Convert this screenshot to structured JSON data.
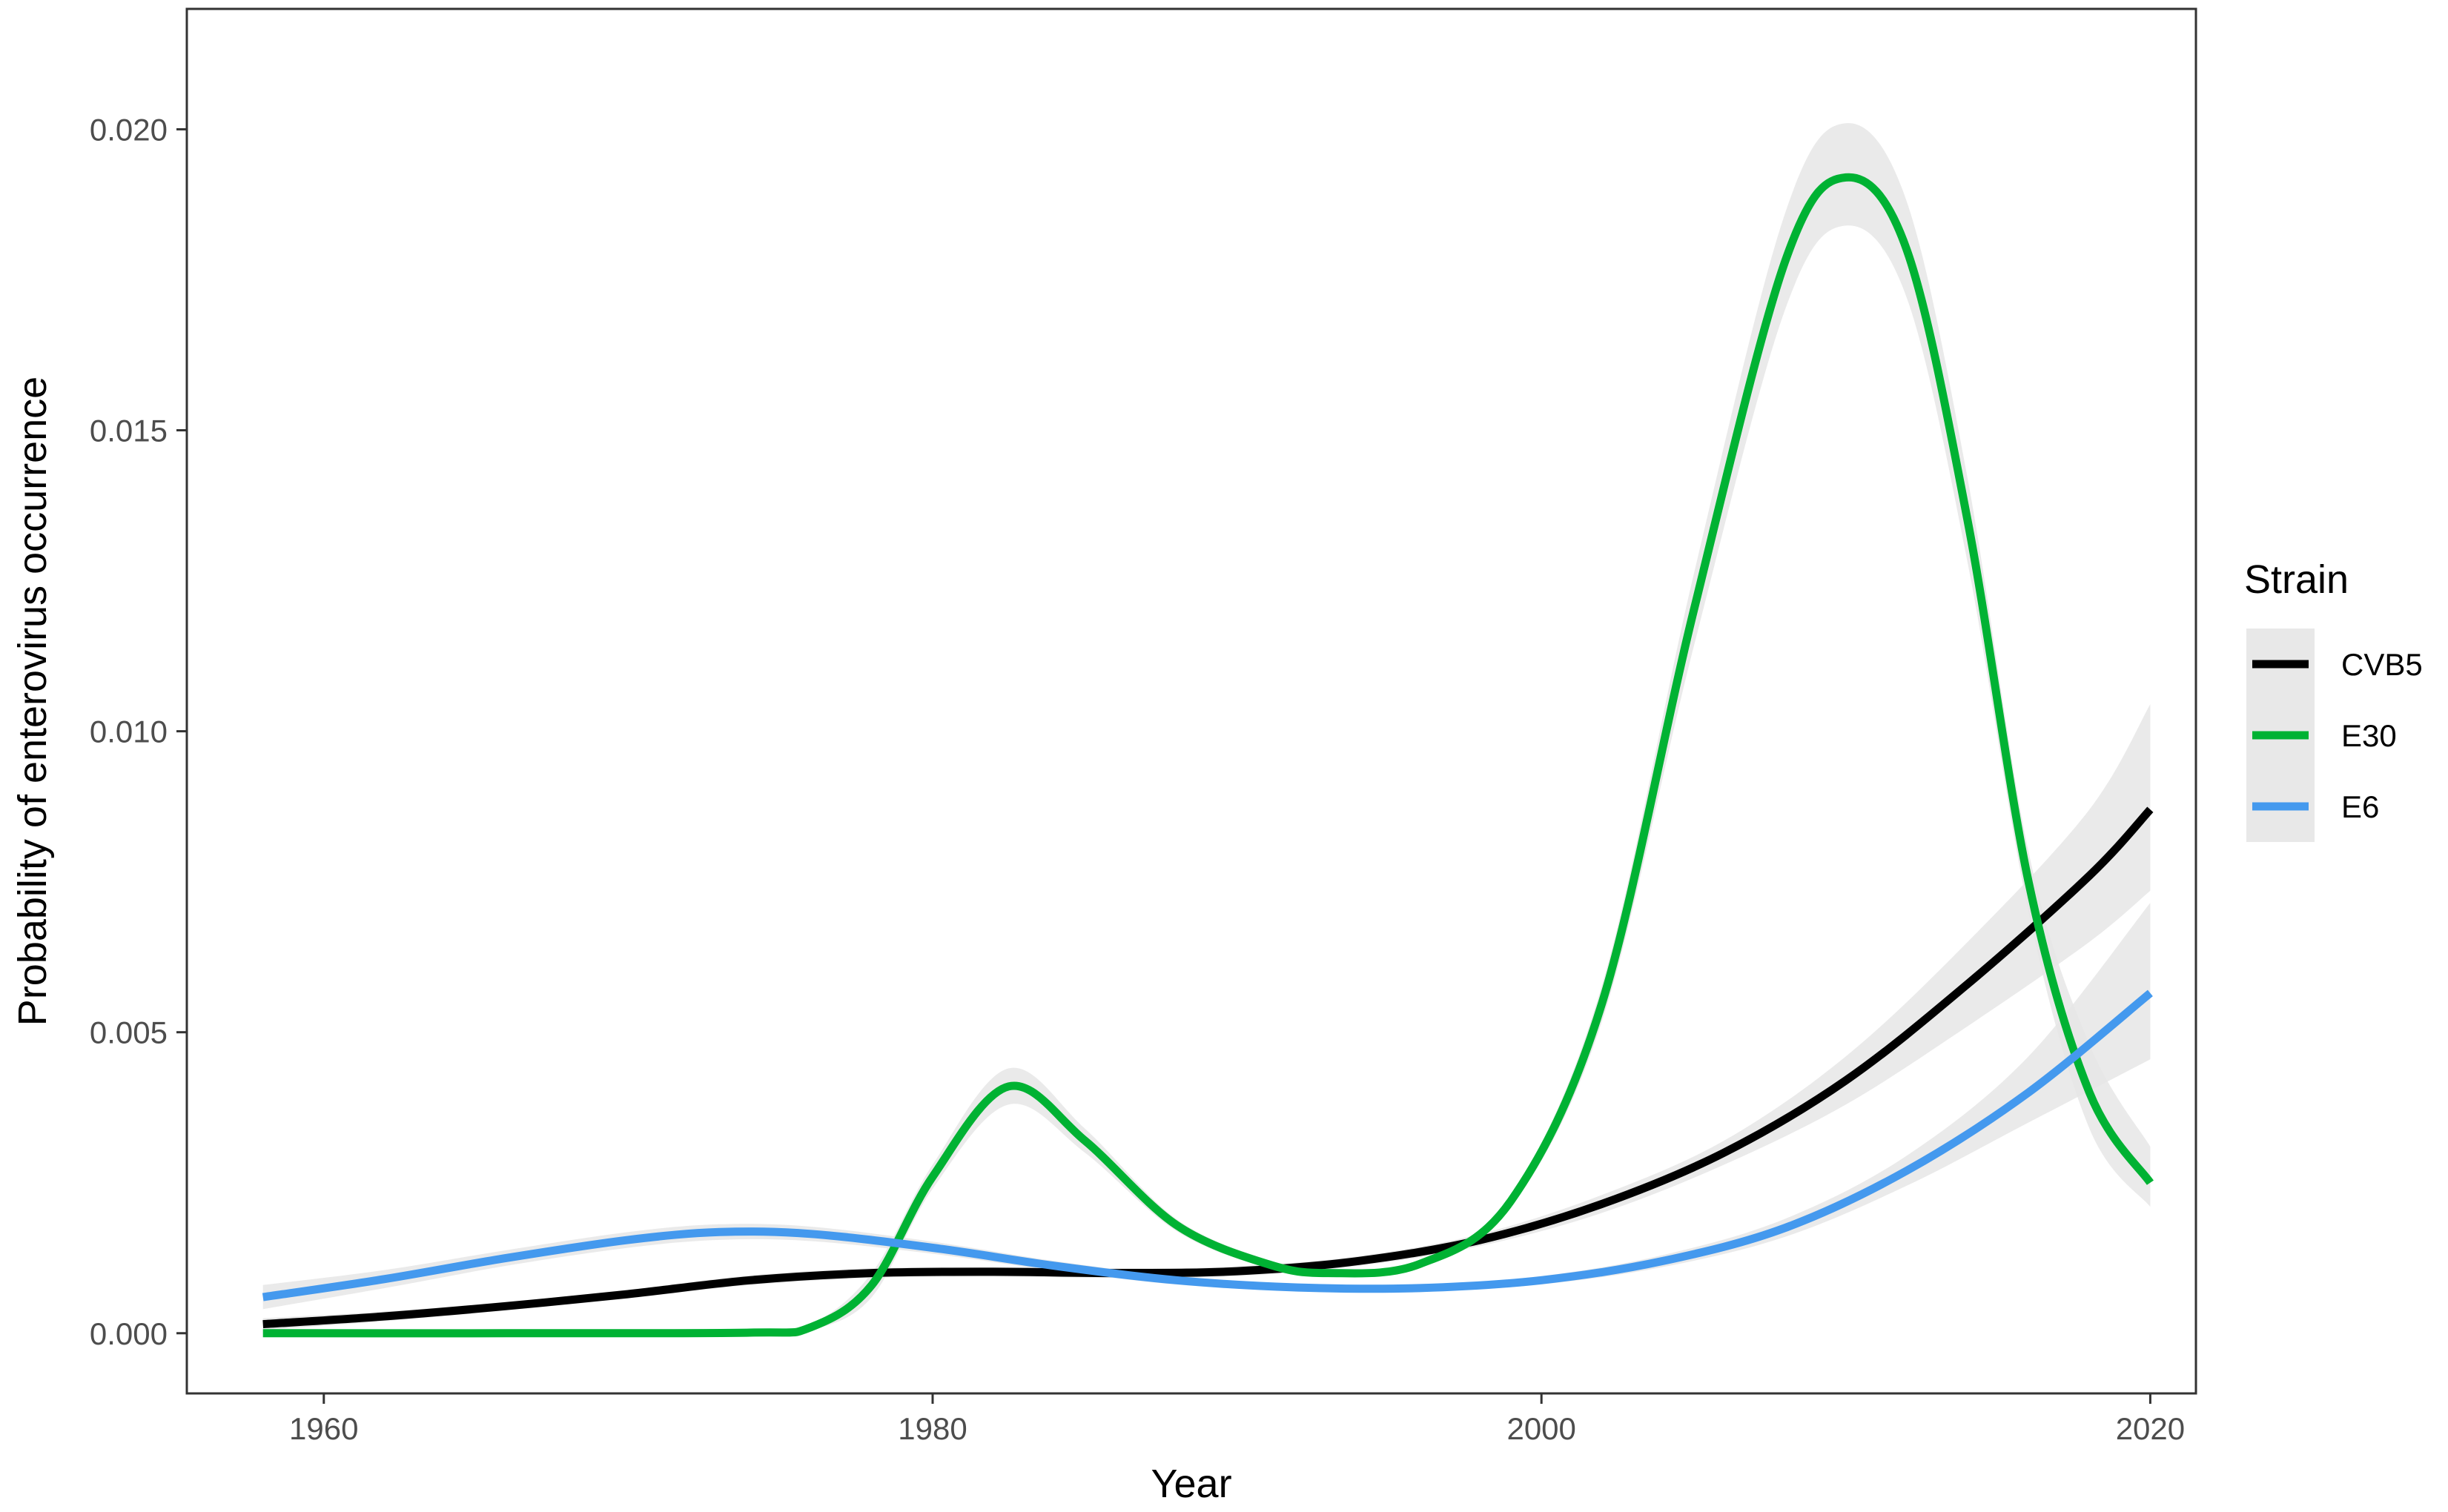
{
  "chart_data": {
    "type": "line",
    "title": "",
    "xlabel": "Year",
    "ylabel": "Probability of enterovirus occurrence",
    "xlim": [
      1955.5,
      2021.5
    ],
    "ylim": [
      -0.001,
      0.022
    ],
    "x_ticks": [
      1960,
      1980,
      2000,
      2020
    ],
    "x_tick_labels": [
      "1960",
      "1980",
      "2000",
      "2020"
    ],
    "y_ticks": [
      0,
      0.005,
      0.01,
      0.015,
      0.02
    ],
    "y_tick_labels": [
      "0.000",
      "0.005",
      "0.010",
      "0.015",
      "0.020"
    ],
    "grid": false,
    "legend": {
      "title": "Strain",
      "position": "right"
    },
    "series": [
      {
        "name": "CVB5",
        "color": "#000000",
        "x": [
          1958,
          1962,
          1966,
          1970,
          1974,
          1978,
          1982,
          1986,
          1990,
          1994,
          1998,
          2002,
          2006,
          2010,
          2014,
          2018,
          2020
        ],
        "y": [
          0.00015,
          0.00028,
          0.00045,
          0.00065,
          0.00088,
          0.001,
          0.00102,
          0.001,
          0.00103,
          0.0012,
          0.00155,
          0.00215,
          0.003,
          0.0042,
          0.0058,
          0.0076,
          0.0087
        ],
        "lower": [
          5e-05,
          0.0002,
          0.00038,
          0.00058,
          0.0008,
          0.00092,
          0.00094,
          0.00092,
          0.00095,
          0.00112,
          0.00145,
          0.002,
          0.0028,
          0.0038,
          0.0051,
          0.0065,
          0.00735
        ],
        "upper": [
          0.00025,
          0.00036,
          0.00052,
          0.00072,
          0.00096,
          0.00108,
          0.0011,
          0.00108,
          0.00111,
          0.00128,
          0.00165,
          0.0023,
          0.0032,
          0.0046,
          0.0065,
          0.0087,
          0.01045
        ]
      },
      {
        "name": "E30",
        "color": "#00b233",
        "x": [
          1958,
          1966,
          1974,
          1976,
          1978,
          1980,
          1982.5,
          1985,
          1988,
          1991,
          1993,
          1996,
          1999,
          2002,
          2005,
          2008,
          2010,
          2012,
          2014,
          2016,
          2018,
          2020
        ],
        "y": [
          0.0,
          0.0,
          1e-05,
          0.0001,
          0.0008,
          0.0026,
          0.0041,
          0.0032,
          0.0018,
          0.00115,
          0.001,
          0.00115,
          0.0022,
          0.0055,
          0.012,
          0.0178,
          0.0192,
          0.018,
          0.0135,
          0.0075,
          0.004,
          0.0025
        ],
        "lower": [
          0.0,
          0.0,
          0.0,
          5e-05,
          0.0006,
          0.0024,
          0.0038,
          0.003,
          0.0017,
          0.00108,
          0.00094,
          0.00108,
          0.0021,
          0.0052,
          0.0114,
          0.017,
          0.0184,
          0.0172,
          0.0128,
          0.007,
          0.0034,
          0.0021
        ],
        "upper": [
          2e-05,
          2e-05,
          3e-05,
          0.00015,
          0.001,
          0.0028,
          0.0044,
          0.0034,
          0.0019,
          0.00122,
          0.00106,
          0.00122,
          0.0023,
          0.0058,
          0.0126,
          0.0186,
          0.0201,
          0.0188,
          0.0142,
          0.008,
          0.0048,
          0.0031
        ]
      },
      {
        "name": "E6",
        "color": "#4499ee",
        "x": [
          1958,
          1962,
          1966,
          1970,
          1973,
          1976,
          1980,
          1984,
          1988,
          1992,
          1996,
          2000,
          2004,
          2008,
          2012,
          2016,
          2020
        ],
        "y": [
          0.0006,
          0.0009,
          0.00125,
          0.00155,
          0.00168,
          0.00165,
          0.00142,
          0.00112,
          0.00088,
          0.00076,
          0.00075,
          0.00088,
          0.0012,
          0.00175,
          0.0027,
          0.004,
          0.00565
        ],
        "lower": [
          0.0004,
          0.00075,
          0.00112,
          0.00142,
          0.00155,
          0.00153,
          0.00132,
          0.00104,
          0.00081,
          0.0007,
          0.00069,
          0.00081,
          0.0011,
          0.0016,
          0.00245,
          0.0035,
          0.00455
        ],
        "upper": [
          0.0008,
          0.00105,
          0.00138,
          0.00168,
          0.00181,
          0.00177,
          0.00152,
          0.0012,
          0.00095,
          0.00082,
          0.00081,
          0.00095,
          0.0013,
          0.0019,
          0.00295,
          0.0046,
          0.00715
        ]
      }
    ]
  }
}
